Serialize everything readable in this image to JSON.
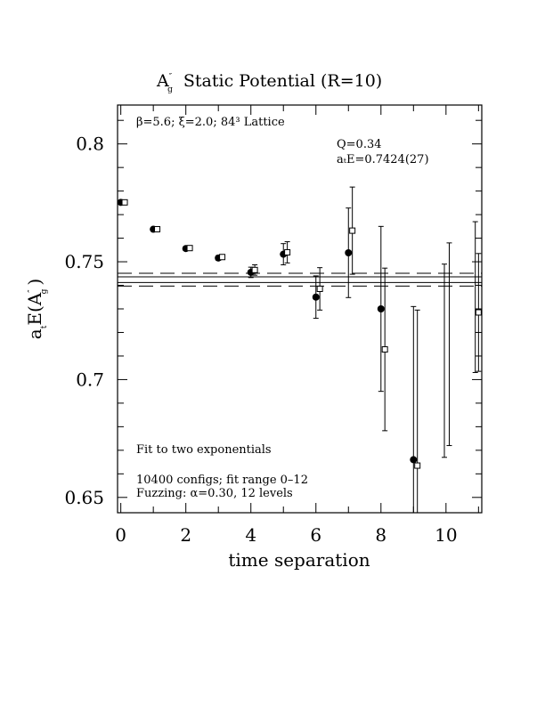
{
  "chart_data": {
    "type": "scatter",
    "title": {
      "prefix": "A",
      "sup": "″",
      "sub": "g",
      "rest": "Static Potential (R=10)"
    },
    "xlabel": "time separation",
    "ylabel": {
      "main": "a",
      "sub1": "t",
      "mid": "E(A",
      "sup": "″",
      "sub2": "g",
      "end": ")"
    },
    "xlim": [
      -0.1,
      11.1
    ],
    "ylim": [
      0.6435,
      0.8165
    ],
    "xticks": [
      {
        "v": 0,
        "label": "0"
      },
      {
        "v": 2,
        "label": "2"
      },
      {
        "v": 4,
        "label": "4"
      },
      {
        "v": 6,
        "label": "6"
      },
      {
        "v": 8,
        "label": "8"
      },
      {
        "v": 10,
        "label": "10"
      }
    ],
    "yticks": [
      {
        "v": 0.65,
        "label": "0.65"
      },
      {
        "v": 0.7,
        "label": "0.7"
      },
      {
        "v": 0.75,
        "label": "0.75"
      },
      {
        "v": 0.8,
        "label": "0.8"
      }
    ],
    "annotations": {
      "lattice": "β=5.6; ξ=2.0; 84³ Lattice",
      "q": "Q=0.34",
      "energy": "aₜE=0.7424(27)",
      "fit": "Fit to two exponentials",
      "configs": "10400 configs; fit range 0–12",
      "fuzzing": "Fuzzing: α=0.30, 12 levels"
    },
    "fit_band": {
      "center": 0.7424,
      "lower": 0.7397,
      "upper": 0.7451,
      "fit_line_offset": 0.0012
    },
    "series": [
      {
        "marker": "filled-circle",
        "points": [
          {
            "x": 0,
            "y": 0.7752,
            "err": 0.0006
          },
          {
            "x": 1,
            "y": 0.7638,
            "err": 0.0007
          },
          {
            "x": 2,
            "y": 0.7556,
            "err": 0.0008
          },
          {
            "x": 3,
            "y": 0.7516,
            "err": 0.001
          },
          {
            "x": 4,
            "y": 0.7455,
            "err": 0.0022
          },
          {
            "x": 5,
            "y": 0.7532,
            "err": 0.0045
          },
          {
            "x": 6,
            "y": 0.735,
            "err": 0.009
          },
          {
            "x": 7,
            "y": 0.7538,
            "err": 0.019
          },
          {
            "x": 8,
            "y": 0.73,
            "err": 0.035
          },
          {
            "x": 9,
            "y": 0.666,
            "err": 0.065
          }
        ]
      },
      {
        "marker": "open-square",
        "points": [
          {
            "x": 0.12,
            "y": 0.7752,
            "err": 0.0006
          },
          {
            "x": 1.12,
            "y": 0.7638,
            "err": 0.0007
          },
          {
            "x": 2.12,
            "y": 0.7558,
            "err": 0.0008
          },
          {
            "x": 3.12,
            "y": 0.752,
            "err": 0.001
          },
          {
            "x": 4.12,
            "y": 0.7465,
            "err": 0.0022
          },
          {
            "x": 5.12,
            "y": 0.754,
            "err": 0.0045
          },
          {
            "x": 6.12,
            "y": 0.7385,
            "err": 0.009
          },
          {
            "x": 7.12,
            "y": 0.7632,
            "err": 0.0185
          },
          {
            "x": 8.12,
            "y": 0.7128,
            "err": 0.0345
          },
          {
            "x": 9.12,
            "y": 0.6635,
            "err": 0.066
          },
          {
            "x": 11.0,
            "y": 0.7285,
            "err": 0.025
          }
        ]
      },
      {
        "marker": "error-bar-only",
        "points": [
          {
            "x": 9.95,
            "y": 0.708,
            "err": 0.041
          },
          {
            "x": 10.1,
            "y": 0.715,
            "err": 0.043
          },
          {
            "x": 10.9,
            "y": 0.735,
            "err": 0.032
          }
        ]
      }
    ]
  }
}
